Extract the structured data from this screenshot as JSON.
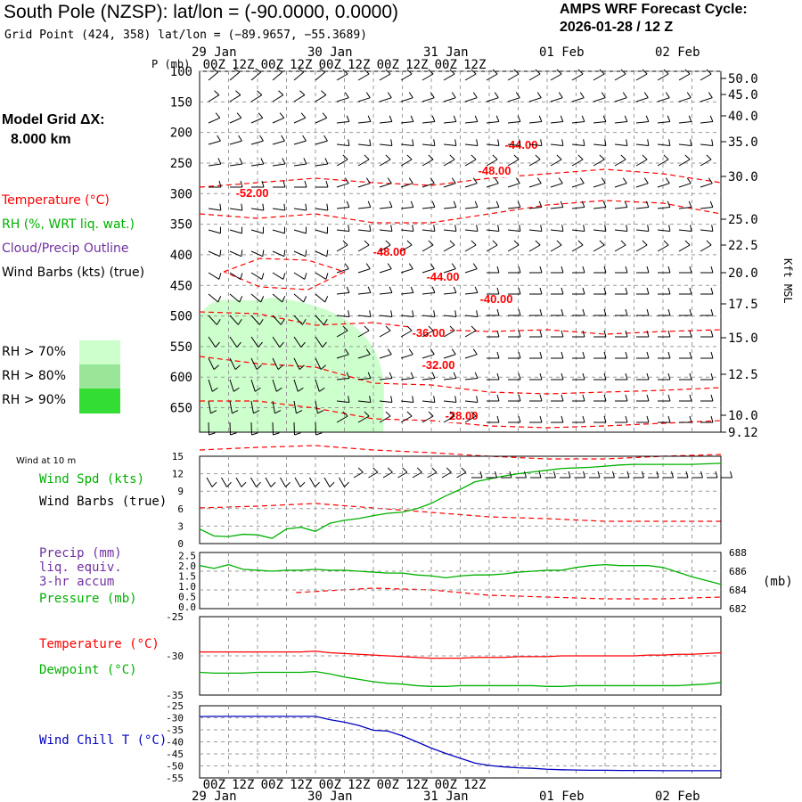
{
  "header": {
    "station": "South Pole (NZSP):  lat/lon = (-90.0000, 0.0000)",
    "grid_point": "Grid Point (424, 358) lat/lon = (−89.9657, −55.3689)",
    "cycle_title": "AMPS WRF Forecast Cycle:",
    "cycle_value": "2026-01-28 / 12  Z"
  },
  "model": {
    "line1": "Model Grid ΔX:",
    "line2": "8.000 km"
  },
  "legend": {
    "temperature": "Temperature (°C)",
    "rh": "RH (%, WRT liq. wat.)",
    "cloud": "Cloud/Precip Outline",
    "wind": "Wind Barbs (kts) (true)",
    "rh70": "RH > 70%",
    "rh80": "RH > 80%",
    "rh90": "RH > 90%"
  },
  "colors": {
    "temperature": "#ff0000",
    "rh": "#00b000",
    "cloud": "#7030a0",
    "wind_chill": "#0000c0",
    "rh70": "#ccffcc",
    "rh80": "#99e699",
    "rh90": "#33dd33"
  },
  "chart_data": [
    {
      "type": "contour",
      "title": "",
      "ylabel": "P (mb)",
      "y2label": "Kft MSL",
      "y_ticks": [
        100,
        150,
        200,
        250,
        300,
        350,
        400,
        450,
        500,
        550,
        600,
        650
      ],
      "y2_ticks": [
        "50.0",
        "45.0",
        "40.0",
        "35.0",
        "30.0",
        "25.0",
        "22.5",
        "20.0",
        "17.5",
        "15.0",
        "12.5",
        "10.0",
        "9.12"
      ],
      "x_ticks_top": [
        "00Z",
        "12Z",
        "00Z",
        "12Z",
        "00Z",
        "12Z",
        "00Z",
        "12Z",
        "00Z",
        "12Z"
      ],
      "x_dates": [
        "29 Jan",
        "30 Jan",
        "31 Jan",
        "01 Feb",
        "02 Feb"
      ],
      "temperature_contour_labels": [
        "-44.00",
        "-48.00",
        "-52.00",
        "-48.00",
        "-44.00",
        "-40.00",
        "-36.00",
        "-32.00",
        "-28.00"
      ],
      "temperature_contours": [
        {
          "level": -44,
          "points": [
            [
              0,
              210
            ],
            [
              24,
              205
            ],
            [
              48,
              200
            ],
            [
              72,
              205
            ],
            [
              96,
              208
            ],
            [
              120,
              200
            ],
            [
              144,
              195
            ],
            [
              168,
              190
            ],
            [
              192,
              195
            ],
            [
              216,
              205
            ]
          ]
        },
        {
          "level": -48,
          "points": [
            [
              0,
              240
            ],
            [
              24,
              245
            ],
            [
              48,
              240
            ],
            [
              72,
              250
            ],
            [
              96,
              250
            ],
            [
              120,
              240
            ],
            [
              144,
              230
            ],
            [
              168,
              225
            ],
            [
              192,
              228
            ],
            [
              216,
              240
            ]
          ]
        },
        {
          "level": -52,
          "points": [
            [
              10,
              305
            ],
            [
              25,
              290
            ],
            [
              45,
              292
            ],
            [
              60,
              305
            ],
            [
              45,
              325
            ],
            [
              25,
              322
            ],
            [
              10,
              305
            ]
          ]
        },
        {
          "level": -48,
          "points": [
            [
              0,
              350
            ],
            [
              24,
              352
            ],
            [
              48,
              365
            ],
            [
              72,
              362
            ],
            [
              96,
              370
            ],
            [
              120,
              372
            ],
            [
              144,
              370
            ],
            [
              168,
              375
            ],
            [
              192,
              372
            ],
            [
              216,
              370
            ]
          ]
        },
        {
          "level": -44,
          "points": [
            [
              0,
              400
            ],
            [
              24,
              408
            ],
            [
              48,
              412
            ],
            [
              72,
              430
            ],
            [
              96,
              432
            ],
            [
              120,
              440
            ],
            [
              144,
              442
            ],
            [
              168,
              440
            ],
            [
              192,
              438
            ],
            [
              216,
              435
            ]
          ]
        },
        {
          "level": -40,
          "points": [
            [
              0,
              450
            ],
            [
              24,
              450
            ],
            [
              48,
              458
            ],
            [
              72,
              470
            ],
            [
              96,
              472
            ],
            [
              120,
              478
            ],
            [
              144,
              480
            ],
            [
              168,
              478
            ],
            [
              192,
              475
            ],
            [
              216,
              472
            ]
          ]
        },
        {
          "level": -36,
          "points": [
            [
              0,
              505
            ],
            [
              24,
              502
            ],
            [
              48,
              500
            ],
            [
              72,
              505
            ],
            [
              96,
              508
            ],
            [
              120,
              512
            ],
            [
              144,
              515
            ],
            [
              168,
              515
            ],
            [
              192,
              512
            ],
            [
              216,
              510
            ]
          ]
        },
        {
          "level": -32,
          "points": [
            [
              0,
              570
            ],
            [
              24,
              568
            ],
            [
              48,
              565
            ],
            [
              72,
              570
            ],
            [
              96,
              575
            ],
            [
              120,
              580
            ],
            [
              144,
              582
            ],
            [
              168,
              585
            ],
            [
              192,
              585
            ],
            [
              216,
              585
            ]
          ]
        },
        {
          "level": -28,
          "points": [
            [
              40,
              665
            ],
            [
              72,
              660
            ],
            [
              96,
              662
            ],
            [
              120,
              668
            ],
            [
              144,
              670
            ],
            [
              168,
              672
            ],
            [
              192,
              672
            ],
            [
              216,
              670
            ]
          ]
        }
      ],
      "rh_regions": [
        {
          "level": "RH > 70%",
          "x_hours": [
            0,
            78
          ],
          "p_range": [
            470,
            690
          ]
        }
      ]
    },
    {
      "type": "line",
      "title": "Wind at 10 m",
      "series": [
        {
          "name": "Wind Spd (kts)",
          "color": "#00b000",
          "x": [
            0,
            6,
            12,
            18,
            24,
            30,
            36,
            42,
            48,
            54,
            60,
            66,
            72,
            78,
            84,
            90,
            96,
            102,
            108,
            114,
            120,
            126,
            132,
            138,
            144,
            150,
            156,
            162,
            168,
            174,
            180,
            186,
            192,
            198,
            204,
            210,
            216
          ],
          "values": [
            2.5,
            1.3,
            1.2,
            1.6,
            1.5,
            0.9,
            2.5,
            2.8,
            2.1,
            3.5,
            4.0,
            4.3,
            4.8,
            5.2,
            5.4,
            6.0,
            6.9,
            8.2,
            9.3,
            10.6,
            11.1,
            11.6,
            12.0,
            12.3,
            12.6,
            12.9,
            13.0,
            13.1,
            13.3,
            13.5,
            13.6,
            13.6,
            13.6,
            13.6,
            13.6,
            13.7,
            13.8
          ]
        }
      ],
      "ylim": [
        0,
        15
      ],
      "y_ticks": [
        0,
        3,
        6,
        9,
        12,
        15
      ],
      "legend": [
        "Wind Spd (kts)",
        "Wind Barbs (true)"
      ]
    },
    {
      "type": "line",
      "series": [
        {
          "name": "Pressure (mb)",
          "color": "#00b000",
          "x": [
            0,
            6,
            12,
            18,
            24,
            30,
            36,
            42,
            48,
            54,
            60,
            66,
            72,
            78,
            84,
            90,
            96,
            102,
            108,
            114,
            120,
            126,
            132,
            138,
            144,
            150,
            156,
            162,
            168,
            174,
            180,
            186,
            192,
            198,
            204,
            210,
            216
          ],
          "values": [
            686.6,
            686.3,
            686.7,
            686.2,
            686.1,
            686.0,
            686.1,
            686.1,
            686.2,
            686.1,
            686.1,
            686.0,
            685.9,
            685.8,
            685.8,
            685.6,
            685.5,
            685.3,
            685.5,
            685.6,
            685.6,
            685.7,
            685.9,
            686.0,
            686.1,
            686.1,
            686.4,
            686.6,
            686.7,
            686.6,
            686.6,
            686.6,
            686.4,
            685.9,
            685.4,
            685.0,
            684.6
          ]
        }
      ],
      "y_ticks_left": [
        "0.0",
        "0.5",
        "1.0",
        "1.5",
        "2.0",
        "2.5"
      ],
      "y_ticks_right": [
        682,
        684,
        686,
        688
      ],
      "ylim_right": [
        682,
        688
      ],
      "legend": [
        "Precip (mm)",
        "liq. equiv.",
        "3-hr accum",
        "Pressure (mb)"
      ],
      "right_label": "(mb)"
    },
    {
      "type": "line",
      "series": [
        {
          "name": "Temperature (°C)",
          "color": "#ff0000",
          "x": [
            0,
            6,
            12,
            18,
            24,
            30,
            36,
            42,
            48,
            54,
            60,
            66,
            72,
            78,
            84,
            90,
            96,
            102,
            108,
            114,
            120,
            126,
            132,
            138,
            144,
            150,
            156,
            162,
            168,
            174,
            180,
            186,
            192,
            198,
            204,
            210,
            216
          ],
          "values": [
            -29.5,
            -29.5,
            -29.5,
            -29.5,
            -29.5,
            -29.5,
            -29.5,
            -29.5,
            -29.4,
            -29.6,
            -29.7,
            -29.8,
            -29.9,
            -30.0,
            -30.1,
            -30.2,
            -30.3,
            -30.3,
            -30.3,
            -30.2,
            -30.2,
            -30.2,
            -30.1,
            -30.1,
            -30.1,
            -30.0,
            -30.0,
            -30.0,
            -30.0,
            -30.0,
            -30.0,
            -29.9,
            -29.9,
            -29.8,
            -29.8,
            -29.7,
            -29.6
          ]
        },
        {
          "name": "Dewpoint (°C)",
          "color": "#00b000",
          "x": [
            0,
            6,
            12,
            18,
            24,
            30,
            36,
            42,
            48,
            54,
            60,
            66,
            72,
            78,
            84,
            90,
            96,
            102,
            108,
            114,
            120,
            126,
            132,
            138,
            144,
            150,
            156,
            162,
            168,
            174,
            180,
            186,
            192,
            198,
            204,
            210,
            216
          ],
          "values": [
            -32.1,
            -32.2,
            -32.2,
            -32.2,
            -32.1,
            -32.1,
            -32.1,
            -32.1,
            -32.0,
            -32.3,
            -32.7,
            -33.0,
            -33.3,
            -33.5,
            -33.6,
            -33.8,
            -33.9,
            -33.9,
            -33.8,
            -33.8,
            -33.8,
            -33.8,
            -33.8,
            -33.8,
            -33.9,
            -33.9,
            -33.8,
            -33.8,
            -33.8,
            -33.8,
            -33.8,
            -33.8,
            -33.8,
            -33.8,
            -33.7,
            -33.6,
            -33.4
          ]
        }
      ],
      "ylim": [
        -35,
        -25
      ],
      "y_ticks": [
        -35,
        -30,
        -25
      ],
      "legend": [
        "Temperature (°C)",
        "Dewpoint (°C)"
      ]
    },
    {
      "type": "line",
      "series": [
        {
          "name": "Wind Chill T (°C)",
          "color": "#0000c0",
          "x": [
            0,
            6,
            12,
            18,
            24,
            30,
            36,
            42,
            48,
            54,
            60,
            66,
            72,
            78,
            84,
            90,
            96,
            102,
            108,
            114,
            120,
            126,
            132,
            138,
            144,
            150,
            156,
            162,
            168,
            174,
            180,
            186,
            192,
            198,
            204,
            210,
            216
          ],
          "values": [
            -29.5,
            -29.4,
            -29.4,
            -29.4,
            -29.4,
            -29.4,
            -29.4,
            -29.4,
            -29.4,
            -30.8,
            -31.8,
            -33.2,
            -35.2,
            -35.5,
            -37.5,
            -40.0,
            -42.6,
            -44.8,
            -46.8,
            -48.8,
            -49.8,
            -50.4,
            -50.8,
            -51.0,
            -51.4,
            -51.6,
            -51.7,
            -51.8,
            -51.8,
            -51.9,
            -51.9,
            -51.9,
            -52.0,
            -52.0,
            -52.0,
            -52.0,
            -52.0
          ]
        }
      ],
      "ylim": [
        -55,
        -25
      ],
      "y_ticks": [
        -55,
        -50,
        -45,
        -40,
        -35,
        -30,
        -25
      ],
      "legend": [
        "Wind Chill T (°C)"
      ],
      "x_ticks": [
        "00Z",
        "12Z",
        "00Z",
        "12Z",
        "00Z",
        "12Z",
        "00Z",
        "12Z",
        "00Z",
        "12Z"
      ],
      "x_dates": [
        "29 Jan",
        "30 Jan",
        "31 Jan",
        "01 Feb",
        "02 Feb"
      ]
    }
  ]
}
